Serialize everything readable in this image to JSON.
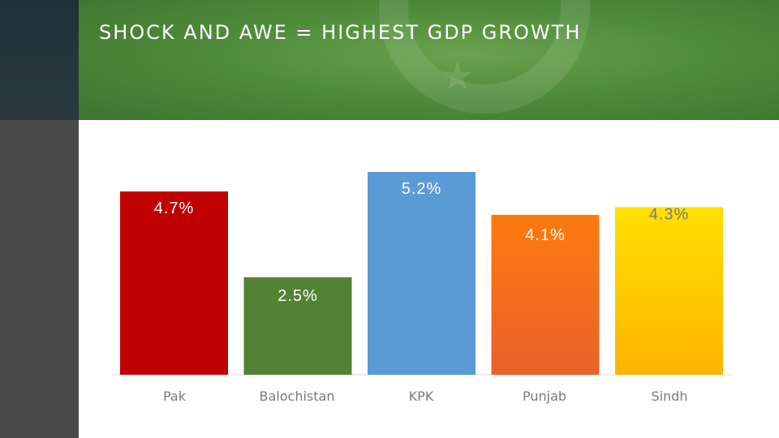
{
  "header": {
    "title": "SHOCK AND AWE = HIGHEST GDP GROWTH"
  },
  "chart_data": {
    "type": "bar",
    "categories": [
      "Pak",
      "Balochistan",
      "KPK",
      "Punjab",
      "Sindh"
    ],
    "values": [
      4.7,
      2.5,
      5.2,
      4.1,
      4.3
    ],
    "data_labels": [
      "4.7%",
      "2.5%",
      "5.2%",
      "4.1%",
      "4.3%"
    ],
    "colors": [
      "#c00000",
      "#548235",
      "#5b9bd5",
      "#f07020",
      "#ffc000"
    ],
    "ylim": [
      0,
      5.2
    ],
    "grid": false,
    "legend": "none"
  }
}
